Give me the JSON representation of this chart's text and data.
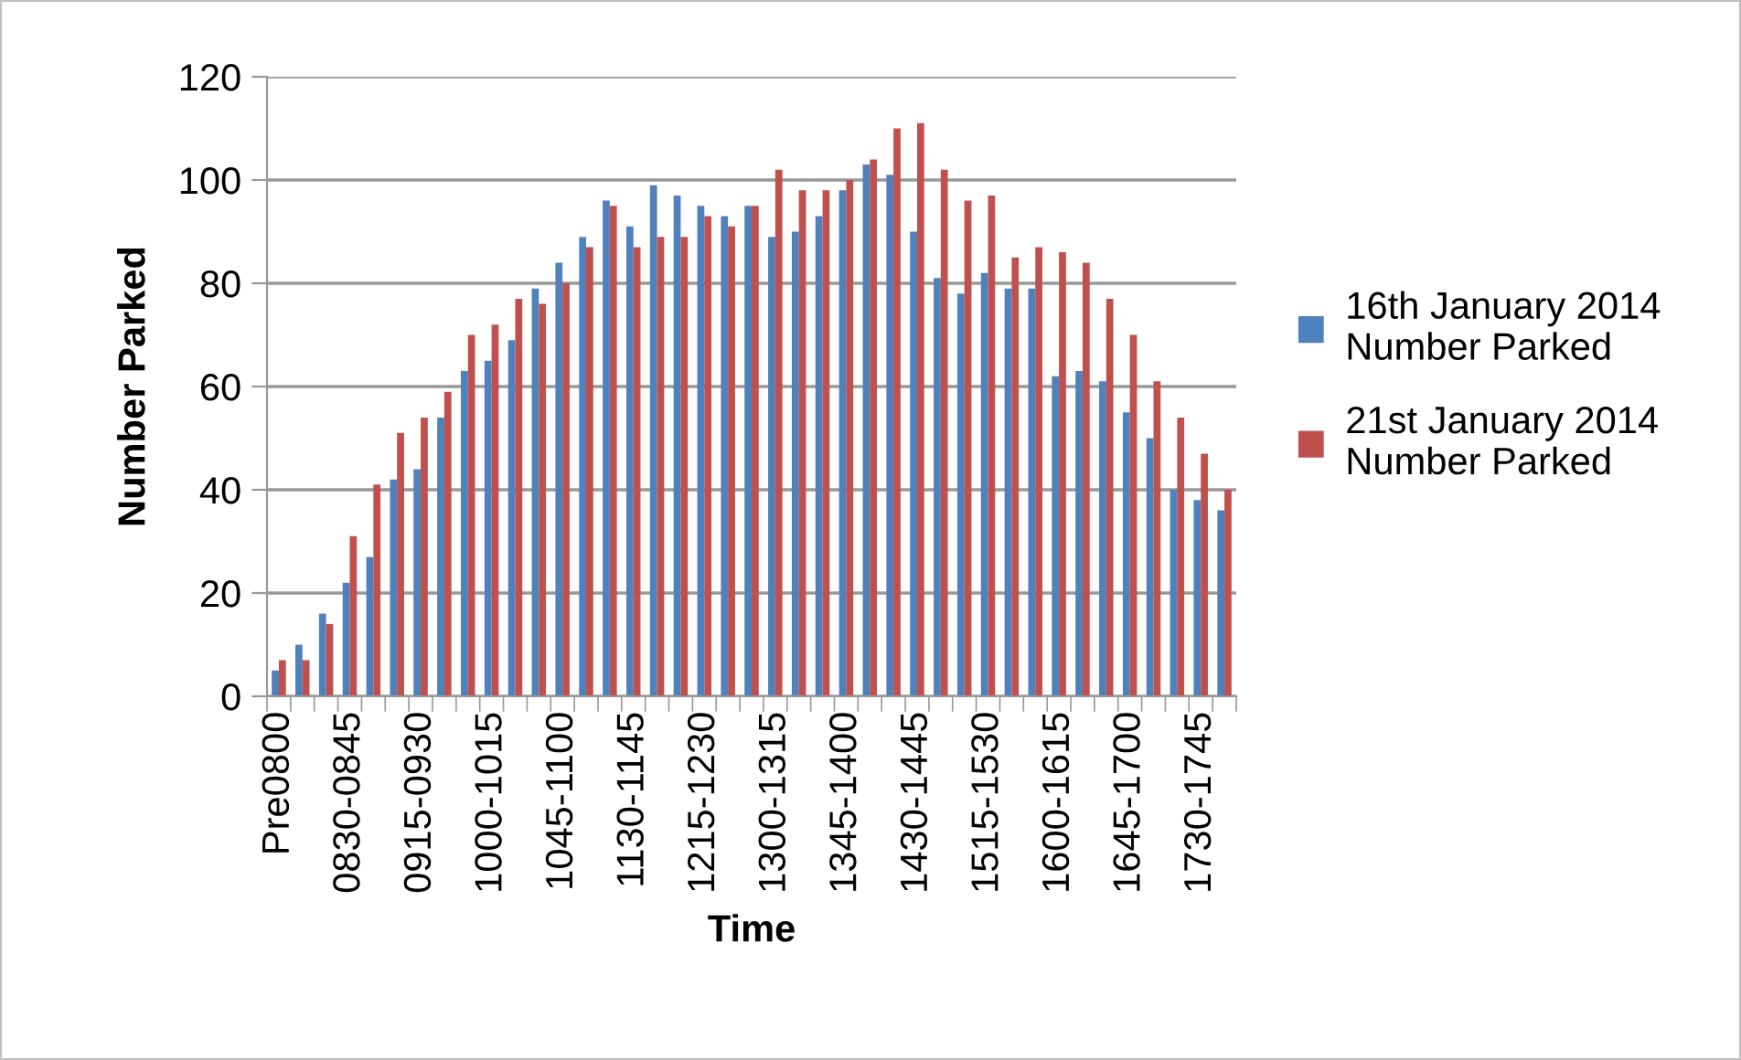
{
  "chart_data": {
    "type": "bar",
    "xlabel": "Time",
    "ylabel": "Number Parked",
    "categories": [
      "Pre0800",
      null,
      null,
      "0830-0845",
      null,
      null,
      "0915-0930",
      null,
      null,
      "1000-1015",
      null,
      null,
      "1045-1100",
      null,
      null,
      "1130-1145",
      null,
      null,
      "1215-1230",
      null,
      null,
      "1300-1315",
      null,
      null,
      "1345-1400",
      null,
      null,
      "1430-1445",
      null,
      null,
      "1515-1530",
      null,
      null,
      "1600-1615",
      null,
      null,
      "1645-1700",
      null,
      null,
      "1730-1745",
      null
    ],
    "series": [
      {
        "name": "16th January 2014 Number Parked",
        "color": "#4f81bd",
        "values": [
          5,
          10,
          16,
          22,
          27,
          42,
          44,
          54,
          63,
          65,
          69,
          79,
          84,
          89,
          96,
          91,
          99,
          97,
          95,
          93,
          95,
          89,
          90,
          93,
          98,
          103,
          101,
          90,
          81,
          78,
          82,
          79,
          79,
          62,
          63,
          61,
          55,
          50,
          40,
          38,
          36
        ]
      },
      {
        "name": "21st January 2014 Number Parked",
        "color": "#c0504d",
        "values": [
          7,
          7,
          14,
          31,
          41,
          51,
          54,
          59,
          70,
          72,
          77,
          76,
          80,
          87,
          95,
          87,
          89,
          89,
          93,
          91,
          95,
          102,
          98,
          98,
          100,
          104,
          110,
          111,
          102,
          96,
          97,
          85,
          87,
          86,
          84,
          77,
          70,
          61,
          54,
          47,
          40
        ]
      }
    ],
    "ylim": [
      0,
      120
    ],
    "yticks": [
      0,
      20,
      40,
      60,
      80,
      100,
      120
    ],
    "grid": "y",
    "legend": "right"
  }
}
